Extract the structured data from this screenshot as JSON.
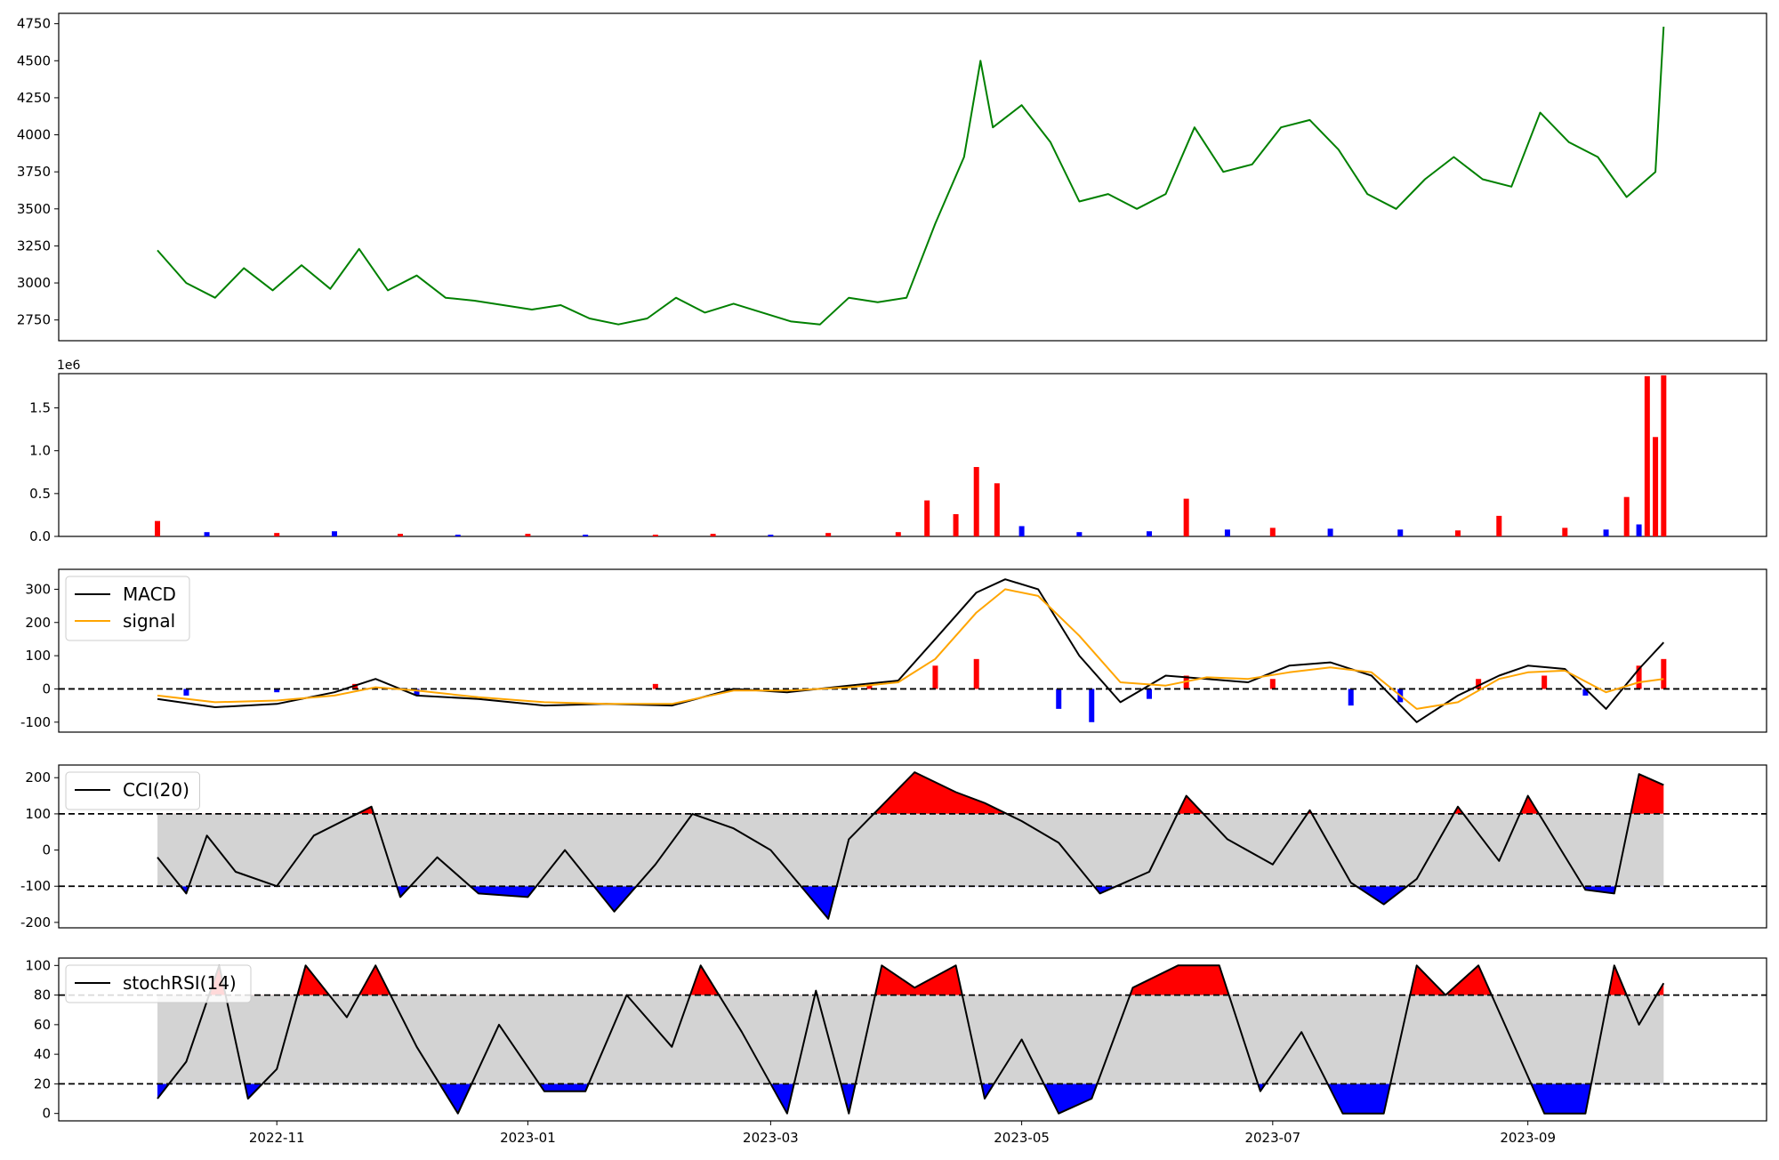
{
  "chart_data": [
    {
      "type": "line",
      "title": "",
      "xlabel": "",
      "ylabel": "",
      "ylim": [
        2610,
        4820
      ],
      "yticks": [
        2750,
        3000,
        3250,
        3500,
        3750,
        4000,
        4250,
        4500,
        4750
      ],
      "grid": false,
      "series": [
        {
          "color": "#008000",
          "x": [
            "2022-10-03",
            "2022-10-10",
            "2022-10-17",
            "2022-10-24",
            "2022-10-31",
            "2022-11-07",
            "2022-11-14",
            "2022-11-21",
            "2022-11-28",
            "2022-12-05",
            "2022-12-12",
            "2022-12-19",
            "2022-12-26",
            "2023-01-02",
            "2023-01-09",
            "2023-01-16",
            "2023-01-23",
            "2023-01-30",
            "2023-02-06",
            "2023-02-13",
            "2023-02-20",
            "2023-02-27",
            "2023-03-06",
            "2023-03-13",
            "2023-03-20",
            "2023-03-27",
            "2023-04-03",
            "2023-04-10",
            "2023-04-17",
            "2023-04-21",
            "2023-04-24",
            "2023-05-01",
            "2023-05-08",
            "2023-05-15",
            "2023-05-22",
            "2023-05-29",
            "2023-06-05",
            "2023-06-12",
            "2023-06-19",
            "2023-06-26",
            "2023-07-03",
            "2023-07-10",
            "2023-07-17",
            "2023-07-24",
            "2023-07-31",
            "2023-08-07",
            "2023-08-14",
            "2023-08-21",
            "2023-08-28",
            "2023-09-04",
            "2023-09-11",
            "2023-09-18",
            "2023-09-25",
            "2023-10-02",
            "2023-10-04"
          ],
          "values": [
            3220,
            3000,
            2900,
            3100,
            2950,
            3120,
            2960,
            3230,
            2950,
            3050,
            2900,
            2880,
            2850,
            2820,
            2850,
            2760,
            2720,
            2760,
            2900,
            2800,
            2860,
            2800,
            2740,
            2720,
            2900,
            2870,
            2900,
            3400,
            3850,
            4500,
            4050,
            4200,
            3950,
            3550,
            3600,
            3500,
            3600,
            4050,
            3750,
            3800,
            4050,
            4100,
            3900,
            3600,
            3500,
            3700,
            3850,
            3700,
            3650,
            4150,
            3950,
            3850,
            3580,
            3750,
            4730
          ]
        }
      ]
    },
    {
      "type": "bar",
      "title": "",
      "ylabel": "",
      "yscale_label": "1e6",
      "ylim": [
        0,
        1.9
      ],
      "yticks": [
        "0.0",
        "0.5",
        "1.0",
        "1.5"
      ],
      "up_color": "#ff0000",
      "down_color": "#0000ff",
      "note_series": "Volume (millions): mostly <0.1 until 2023-04, spikes in April, peaks ~1.88 at end of series",
      "x": [
        "2022-10-03",
        "2022-10-15",
        "2022-11-01",
        "2022-11-15",
        "2022-12-01",
        "2022-12-15",
        "2023-01-01",
        "2023-01-15",
        "2023-02-01",
        "2023-02-15",
        "2023-03-01",
        "2023-03-15",
        "2023-04-01",
        "2023-04-08",
        "2023-04-15",
        "2023-04-20",
        "2023-04-25",
        "2023-05-01",
        "2023-05-15",
        "2023-06-01",
        "2023-06-10",
        "2023-06-20",
        "2023-07-01",
        "2023-07-15",
        "2023-08-01",
        "2023-08-15",
        "2023-08-25",
        "2023-09-10",
        "2023-09-20",
        "2023-09-25",
        "2023-09-28",
        "2023-09-30",
        "2023-10-02",
        "2023-10-04"
      ],
      "values": [
        0.18,
        0.05,
        0.04,
        0.06,
        0.03,
        0.02,
        0.03,
        0.02,
        0.02,
        0.03,
        0.02,
        0.04,
        0.05,
        0.42,
        0.26,
        0.81,
        0.62,
        0.12,
        0.05,
        0.06,
        0.44,
        0.08,
        0.1,
        0.09,
        0.08,
        0.07,
        0.24,
        0.1,
        0.08,
        0.46,
        0.14,
        1.87,
        1.16,
        1.88
      ],
      "up": [
        true,
        false,
        true,
        false,
        true,
        false,
        true,
        false,
        true,
        true,
        false,
        true,
        true,
        true,
        true,
        true,
        true,
        false,
        false,
        false,
        true,
        false,
        true,
        false,
        false,
        true,
        true,
        true,
        false,
        true,
        false,
        true,
        true,
        true
      ]
    },
    {
      "type": "line",
      "title": "",
      "ylabel": "",
      "ylim": [
        -130,
        360
      ],
      "yticks": [
        -100,
        0,
        100,
        200,
        300
      ],
      "zero_line": 0,
      "legend_position": "upper left",
      "series": [
        {
          "name": "MACD",
          "color": "#000000",
          "x": [
            "2022-10-03",
            "2022-10-17",
            "2022-11-01",
            "2022-11-15",
            "2022-11-25",
            "2022-12-05",
            "2022-12-20",
            "2023-01-05",
            "2023-01-20",
            "2023-02-05",
            "2023-02-20",
            "2023-03-05",
            "2023-03-20",
            "2023-04-01",
            "2023-04-10",
            "2023-04-20",
            "2023-04-27",
            "2023-05-05",
            "2023-05-15",
            "2023-05-25",
            "2023-06-05",
            "2023-06-15",
            "2023-06-25",
            "2023-07-05",
            "2023-07-15",
            "2023-07-25",
            "2023-08-05",
            "2023-08-15",
            "2023-08-25",
            "2023-09-01",
            "2023-09-10",
            "2023-09-20",
            "2023-09-28",
            "2023-10-04"
          ],
          "values": [
            -30,
            -55,
            -45,
            -10,
            30,
            -20,
            -30,
            -50,
            -45,
            -50,
            0,
            -10,
            10,
            25,
            150,
            290,
            330,
            300,
            100,
            -40,
            40,
            30,
            20,
            70,
            80,
            40,
            -100,
            -20,
            40,
            70,
            60,
            -60,
            60,
            140
          ]
        },
        {
          "name": "signal",
          "color": "#ffa500",
          "x": [
            "2022-10-03",
            "2022-10-17",
            "2022-11-01",
            "2022-11-15",
            "2022-11-25",
            "2022-12-05",
            "2022-12-20",
            "2023-01-05",
            "2023-01-20",
            "2023-02-05",
            "2023-02-20",
            "2023-03-05",
            "2023-03-20",
            "2023-04-01",
            "2023-04-10",
            "2023-04-20",
            "2023-04-27",
            "2023-05-05",
            "2023-05-15",
            "2023-05-25",
            "2023-06-05",
            "2023-06-15",
            "2023-06-25",
            "2023-07-05",
            "2023-07-15",
            "2023-07-25",
            "2023-08-05",
            "2023-08-15",
            "2023-08-25",
            "2023-09-01",
            "2023-09-10",
            "2023-09-20",
            "2023-09-28",
            "2023-10-04"
          ],
          "values": [
            -20,
            -40,
            -35,
            -20,
            5,
            -5,
            -25,
            -40,
            -45,
            -45,
            -5,
            -5,
            5,
            20,
            90,
            230,
            300,
            280,
            160,
            20,
            10,
            35,
            30,
            50,
            65,
            50,
            -60,
            -40,
            30,
            50,
            55,
            -10,
            20,
            30
          ]
        }
      ],
      "histogram": {
        "up_color": "#ff0000",
        "down_color": "#0000ff",
        "x": [
          "2022-10-10",
          "2022-11-01",
          "2022-11-20",
          "2022-12-05",
          "2023-02-01",
          "2023-03-25",
          "2023-04-10",
          "2023-04-20",
          "2023-05-10",
          "2023-05-18",
          "2023-06-01",
          "2023-06-10",
          "2023-07-01",
          "2023-07-20",
          "2023-08-01",
          "2023-08-20",
          "2023-09-05",
          "2023-09-15",
          "2023-09-28",
          "2023-10-04"
        ],
        "values": [
          -20,
          -10,
          15,
          -20,
          15,
          15,
          70,
          90,
          -60,
          -100,
          -30,
          40,
          30,
          -50,
          -40,
          30,
          40,
          -20,
          70,
          90
        ]
      }
    },
    {
      "type": "line",
      "title": "",
      "ylim": [
        -215,
        235
      ],
      "yticks": [
        -200,
        -100,
        0,
        100,
        200
      ],
      "bands": [
        -100,
        100
      ],
      "band_color": "#d3d3d3",
      "overbought_color": "#ff0000",
      "oversold_color": "#0000ff",
      "legend_position": "upper left",
      "series": [
        {
          "name": "CCI(20)",
          "color": "#000000",
          "x": [
            "2022-10-03",
            "2022-10-10",
            "2022-10-15",
            "2022-10-22",
            "2022-11-01",
            "2022-11-10",
            "2022-11-24",
            "2022-12-01",
            "2022-12-10",
            "2022-12-20",
            "2023-01-01",
            "2023-01-10",
            "2023-01-22",
            "2023-02-01",
            "2023-02-10",
            "2023-02-20",
            "2023-03-01",
            "2023-03-15",
            "2023-03-20",
            "2023-04-05",
            "2023-04-15",
            "2023-04-22",
            "2023-05-01",
            "2023-05-10",
            "2023-05-20",
            "2023-06-01",
            "2023-06-10",
            "2023-06-20",
            "2023-07-01",
            "2023-07-10",
            "2023-07-20",
            "2023-07-28",
            "2023-08-05",
            "2023-08-15",
            "2023-08-25",
            "2023-09-01",
            "2023-09-15",
            "2023-09-22",
            "2023-09-28",
            "2023-10-04"
          ],
          "values": [
            -20,
            -120,
            40,
            -60,
            -100,
            40,
            120,
            -130,
            -20,
            -120,
            -130,
            0,
            -170,
            -40,
            100,
            60,
            0,
            -190,
            30,
            215,
            160,
            130,
            80,
            20,
            -120,
            -60,
            150,
            30,
            -40,
            110,
            -90,
            -150,
            -80,
            120,
            -30,
            150,
            -110,
            -120,
            210,
            180
          ]
        }
      ]
    },
    {
      "type": "line",
      "title": "",
      "ylim": [
        -5,
        105
      ],
      "yticks": [
        0,
        20,
        40,
        60,
        80,
        100
      ],
      "bands": [
        20,
        80
      ],
      "band_color": "#d3d3d3",
      "overbought_color": "#ff0000",
      "oversold_color": "#0000ff",
      "legend_position": "upper left",
      "xticks": [
        "2022-11",
        "2023-01",
        "2023-03",
        "2023-05",
        "2023-07",
        "2023-09"
      ],
      "series": [
        {
          "name": "stochRSI(14)",
          "color": "#000000",
          "x": [
            "2022-10-03",
            "2022-10-10",
            "2022-10-18",
            "2022-10-25",
            "2022-11-01",
            "2022-11-08",
            "2022-11-18",
            "2022-11-25",
            "2022-12-05",
            "2022-12-15",
            "2022-12-25",
            "2023-01-05",
            "2023-01-15",
            "2023-01-25",
            "2023-02-05",
            "2023-02-12",
            "2023-02-22",
            "2023-03-05",
            "2023-03-12",
            "2023-03-20",
            "2023-03-28",
            "2023-04-05",
            "2023-04-15",
            "2023-04-22",
            "2023-05-01",
            "2023-05-10",
            "2023-05-18",
            "2023-05-28",
            "2023-06-08",
            "2023-06-18",
            "2023-06-28",
            "2023-07-08",
            "2023-07-18",
            "2023-07-28",
            "2023-08-05",
            "2023-08-12",
            "2023-08-20",
            "2023-08-28",
            "2023-09-05",
            "2023-09-15",
            "2023-09-22",
            "2023-09-28",
            "2023-10-04"
          ],
          "values": [
            10,
            35,
            100,
            10,
            30,
            100,
            65,
            100,
            45,
            0,
            60,
            15,
            15,
            80,
            45,
            100,
            55,
            0,
            83,
            0,
            100,
            85,
            100,
            10,
            50,
            0,
            10,
            85,
            100,
            100,
            15,
            55,
            0,
            0,
            100,
            80,
            100,
            50,
            0,
            0,
            100,
            60,
            88
          ]
        }
      ]
    }
  ]
}
